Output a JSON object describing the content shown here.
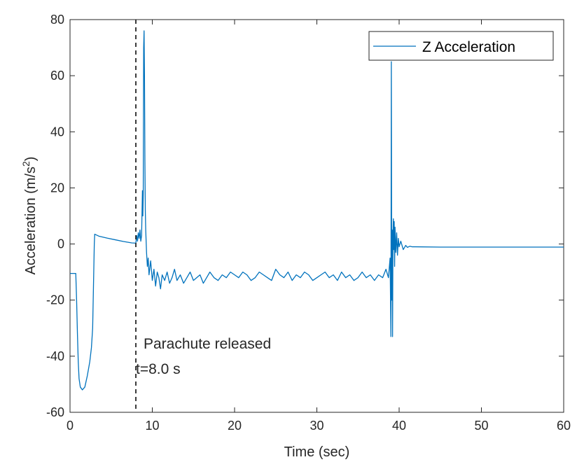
{
  "chart_data": {
    "type": "line",
    "title": "",
    "xlabel": "Time (sec)",
    "ylabel": "Acceleration (m/s",
    "ylabel_sup": "2",
    "ylabel_close": ")",
    "xlim": [
      0,
      60
    ],
    "ylim": [
      -60,
      80
    ],
    "xticks": [
      "0",
      "10",
      "20",
      "30",
      "40",
      "50",
      "60"
    ],
    "yticks": [
      "-60",
      "-40",
      "-20",
      "0",
      "20",
      "40",
      "60",
      "80"
    ],
    "grid": false,
    "legend": {
      "placement": "top-right",
      "entries": [
        "Z Acceleration"
      ]
    },
    "line_color": "#0072BD",
    "annotation": {
      "vline_x": 8.0,
      "line1": "Parachute released",
      "line2": "t=8.0 s"
    },
    "series": [
      {
        "name": "Z Acceleration",
        "x": [
          0,
          0.4,
          0.7,
          0.8,
          0.9,
          1.0,
          1.1,
          1.25,
          1.5,
          1.8,
          2.1,
          2.4,
          2.6,
          2.75,
          2.85,
          2.95,
          3.0,
          3.5,
          4.5,
          5.5,
          6.5,
          7.5,
          8.0,
          8.1,
          8.2,
          8.3,
          8.4,
          8.5,
          8.6,
          8.7,
          8.8,
          8.85,
          8.9,
          8.95,
          9.0,
          9.05,
          9.1,
          9.15,
          9.2,
          9.3,
          9.4,
          9.5,
          9.6,
          9.8,
          10.0,
          10.2,
          10.4,
          10.6,
          10.8,
          11.0,
          11.2,
          11.5,
          11.8,
          12.1,
          12.4,
          12.7,
          13.0,
          13.4,
          13.8,
          14.2,
          14.6,
          15.0,
          15.4,
          15.8,
          16.2,
          16.6,
          17.0,
          17.5,
          18.0,
          18.5,
          19.0,
          19.5,
          20.0,
          20.5,
          21.0,
          21.5,
          22.0,
          22.5,
          23.0,
          23.5,
          24.0,
          24.5,
          25.0,
          25.5,
          26.0,
          26.5,
          27.0,
          27.5,
          28.0,
          28.5,
          29.0,
          29.5,
          30.0,
          30.5,
          31.0,
          31.5,
          32.0,
          32.5,
          33.0,
          33.5,
          34.0,
          34.5,
          35.0,
          35.5,
          36.0,
          36.5,
          37.0,
          37.5,
          38.0,
          38.4,
          38.7,
          38.9,
          39.0,
          39.05,
          39.1,
          39.15,
          39.2,
          39.25,
          39.3,
          39.35,
          39.4,
          39.45,
          39.5,
          39.6,
          39.7,
          39.8,
          39.9,
          40.0,
          40.2,
          40.5,
          40.8,
          41.0,
          41.3,
          41.6,
          42.0,
          45.0,
          50.0,
          55.0,
          60.0
        ],
        "y": [
          -10.5,
          -10.5,
          -10.5,
          -20,
          -32,
          -42,
          -48,
          -51,
          -52,
          -51,
          -47,
          -42,
          -37,
          -30,
          -15,
          0,
          3.5,
          2.8,
          2.1,
          1.5,
          0.9,
          0.4,
          0.3,
          3,
          1,
          4,
          2,
          5,
          1,
          3,
          19,
          10,
          18,
          70,
          76,
          60,
          30,
          12,
          5,
          -3,
          -8,
          -5,
          -11,
          -6,
          -13,
          -9,
          -15,
          -10,
          -12,
          -16,
          -11,
          -13,
          -10,
          -14,
          -12,
          -9,
          -13,
          -11,
          -14,
          -12,
          -10,
          -13,
          -12,
          -11,
          -14,
          -12,
          -10,
          -12,
          -13,
          -11,
          -12,
          -10,
          -11,
          -12,
          -10,
          -11,
          -13,
          -12,
          -10,
          -11,
          -12,
          -13,
          -9,
          -11,
          -12,
          -10,
          -13,
          -11,
          -12,
          -10,
          -11,
          -13,
          -12,
          -11,
          -10,
          -12,
          -11,
          -13,
          -10,
          -12,
          -11,
          -13,
          -12,
          -10,
          -12,
          -11,
          -13,
          -11,
          -12,
          -9,
          -12,
          -5,
          -33,
          65,
          -20,
          5,
          -33,
          3,
          9,
          -2,
          8,
          -8,
          6,
          -3,
          4,
          -4,
          2,
          -1,
          1,
          -2,
          -0.5,
          -1.2,
          -0.8,
          -1.0,
          -1.0,
          -1.1,
          -1.1,
          -1.1,
          -1.1
        ]
      }
    ]
  }
}
